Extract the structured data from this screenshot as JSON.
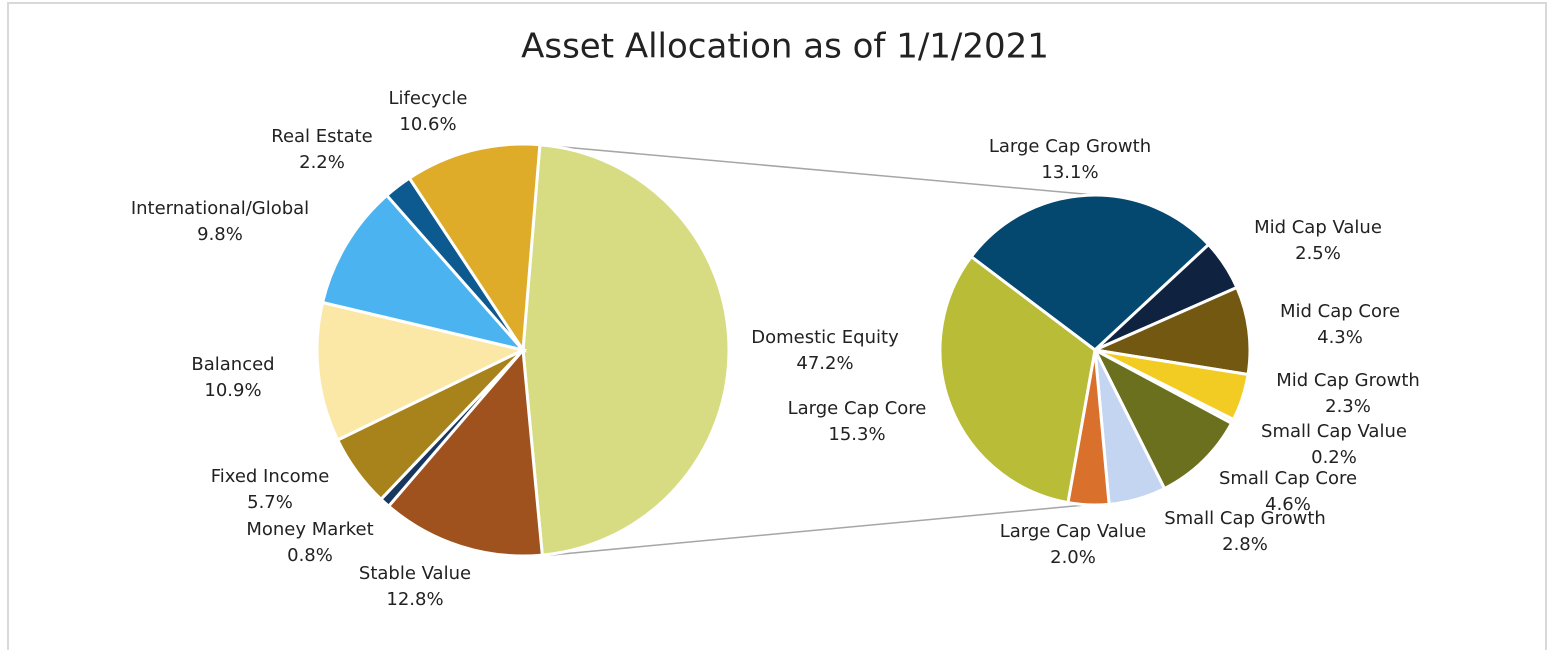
{
  "chart_data": [
    {
      "type": "pie",
      "title": "Asset Allocation as of 1/1/2021",
      "categories": [
        "Domestic Equity",
        "Stable Value",
        "Money Market",
        "Fixed Income",
        "Balanced",
        "International/Global",
        "Real Estate",
        "Lifecycle"
      ],
      "values": [
        47.2,
        12.8,
        0.8,
        5.7,
        10.9,
        9.8,
        2.2,
        10.6
      ],
      "value_labels": [
        "47.2%",
        "12.8%",
        "0.8%",
        "5.7%",
        "10.9%",
        "9.8%",
        "2.2%",
        "10.6%"
      ],
      "colors": [
        "#d7dc82",
        "#a0521e",
        "#17375e",
        "#a8821a",
        "#fbe8a6",
        "#4bb3f0",
        "#0c5a8f",
        "#deac28"
      ]
    },
    {
      "type": "pie",
      "categories": [
        "Large Cap Growth",
        "Mid Cap Value",
        "Mid Cap Core",
        "Mid Cap Growth",
        "Small Cap Value",
        "Small Cap Core",
        "Small Cap Growth",
        "Large Cap Value",
        "Large Cap Core"
      ],
      "values": [
        13.1,
        2.5,
        4.3,
        2.3,
        0.2,
        4.6,
        2.8,
        2.0,
        15.3
      ],
      "value_labels": [
        "13.1%",
        "2.5%",
        "4.3%",
        "2.3%",
        "0.2%",
        "4.6%",
        "2.8%",
        "2.0%",
        "15.3%"
      ],
      "colors": [
        "#05486f",
        "#0f2340",
        "#735811",
        "#f2cc22",
        "#f5f1e0",
        "#6b701f",
        "#c3d5f0",
        "#d9712c",
        "#b8bc36"
      ]
    }
  ]
}
